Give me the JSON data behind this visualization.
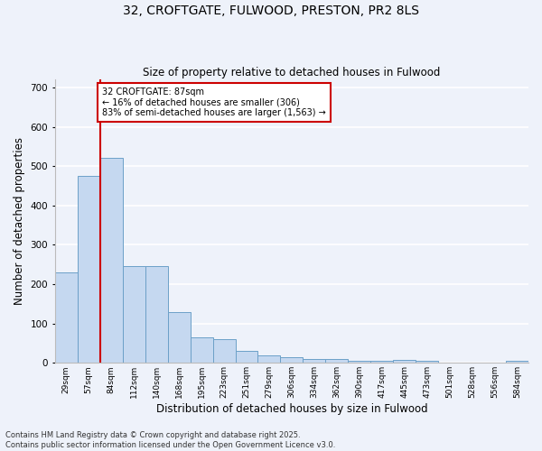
{
  "title_line1": "32, CROFTGATE, FULWOOD, PRESTON, PR2 8LS",
  "title_line2": "Size of property relative to detached houses in Fulwood",
  "xlabel": "Distribution of detached houses by size in Fulwood",
  "ylabel": "Number of detached properties",
  "bins": [
    "29sqm",
    "57sqm",
    "84sqm",
    "112sqm",
    "140sqm",
    "168sqm",
    "195sqm",
    "223sqm",
    "251sqm",
    "279sqm",
    "306sqm",
    "334sqm",
    "362sqm",
    "390sqm",
    "417sqm",
    "445sqm",
    "473sqm",
    "501sqm",
    "528sqm",
    "556sqm",
    "584sqm"
  ],
  "values": [
    230,
    475,
    520,
    245,
    245,
    130,
    65,
    60,
    30,
    20,
    15,
    10,
    10,
    5,
    5,
    8,
    5,
    0,
    0,
    0,
    5
  ],
  "bar_color": "#c5d8f0",
  "bar_edge_color": "#6ca0c8",
  "property_line_color": "#cc0000",
  "property_line_bin": 2,
  "annotation_text": "32 CROFTGATE: 87sqm\n← 16% of detached houses are smaller (306)\n83% of semi-detached houses are larger (1,563) →",
  "annotation_box_color": "#cc0000",
  "annotation_bg": "#ffffff",
  "ylim": [
    0,
    720
  ],
  "yticks": [
    0,
    100,
    200,
    300,
    400,
    500,
    600,
    700
  ],
  "footer_line1": "Contains HM Land Registry data © Crown copyright and database right 2025.",
  "footer_line2": "Contains public sector information licensed under the Open Government Licence v3.0.",
  "background_color": "#eef2fa",
  "grid_color": "#ffffff"
}
